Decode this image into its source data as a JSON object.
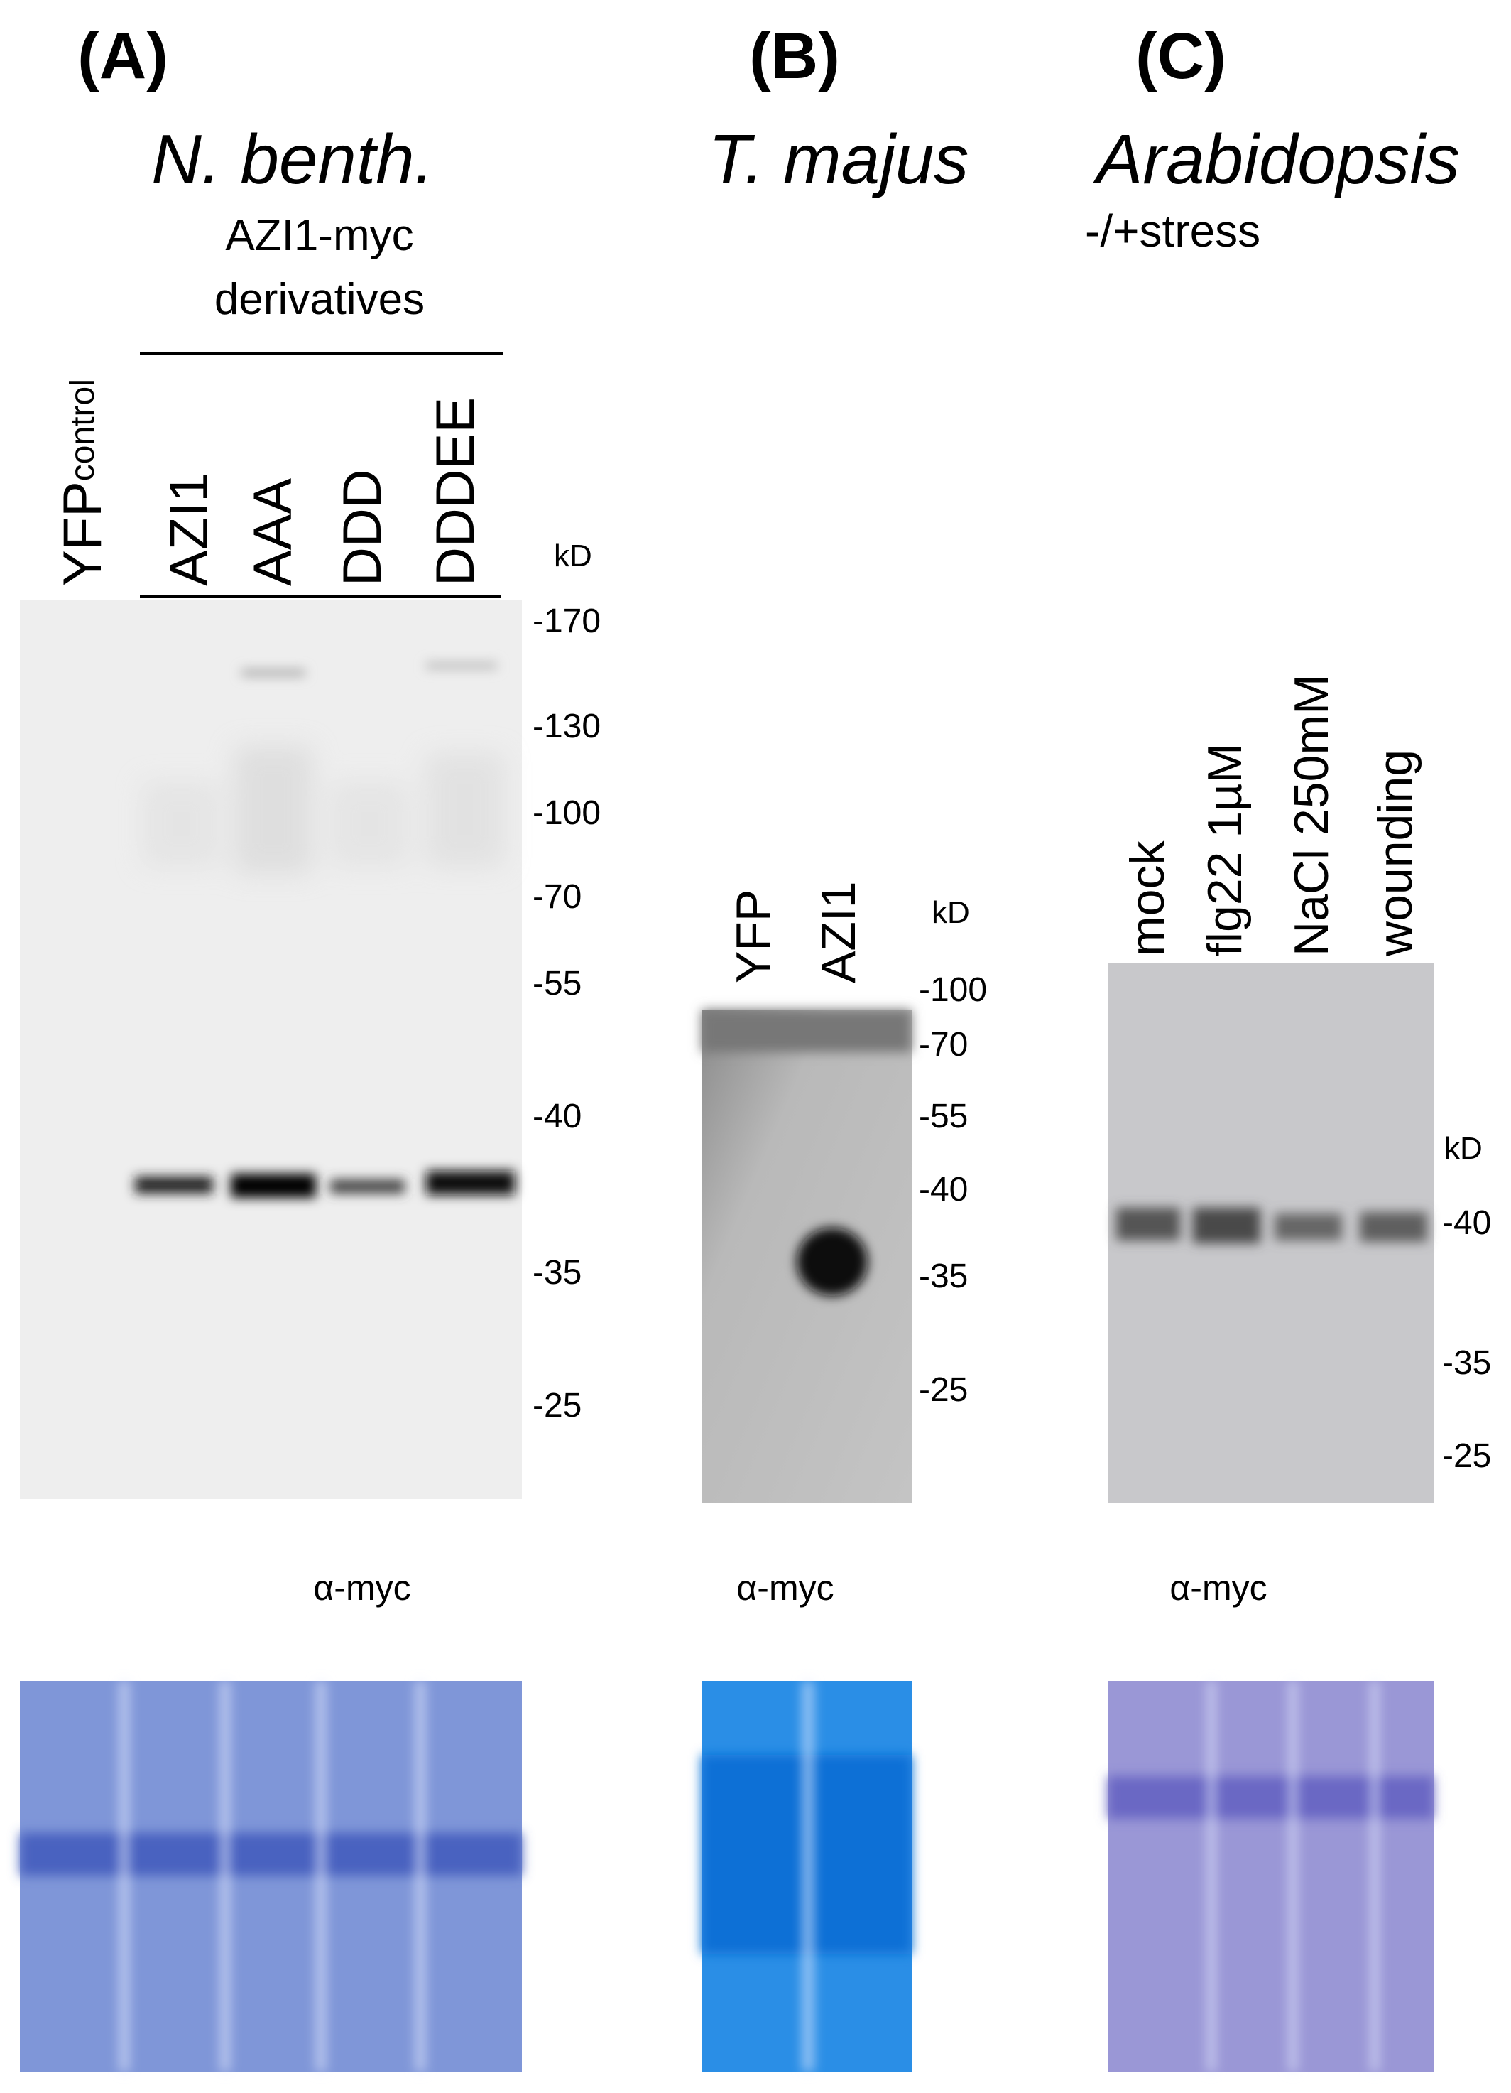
{
  "panels": [
    {
      "label": "(A)",
      "organism": "N. benth.",
      "group_label": [
        "AZI1-myc",
        "derivatives"
      ],
      "lanes": [
        "YFP",
        "AZI1",
        "AAA",
        "DDD",
        "DDDEE"
      ],
      "lane_tag": "control",
      "unit": "kD",
      "markers": [
        "-170",
        "-130",
        "-100",
        "-70",
        "-55",
        "-40",
        "-35",
        "-25"
      ],
      "antibody": "α-myc"
    },
    {
      "label": "(B)",
      "organism": "T. majus",
      "lanes": [
        "YFP",
        "AZI1"
      ],
      "unit": "kD",
      "markers": [
        "-100",
        "-70",
        "-55",
        "-40",
        "-35",
        "-25"
      ],
      "antibody": "α-myc"
    },
    {
      "label": "(C)",
      "organism": "Arabidopsis",
      "condition": "-/+stress",
      "lanes": [
        "mock",
        "flg22 1µM",
        "NaCl 250mM",
        "wounding"
      ],
      "unit": "kD",
      "markers": [
        "-40",
        "-35",
        "-25"
      ],
      "antibody": "α-myc"
    }
  ]
}
